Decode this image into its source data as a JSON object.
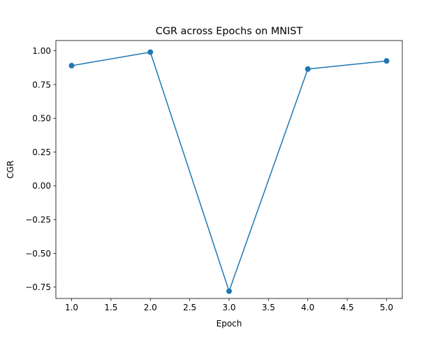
{
  "chart_data": {
    "type": "line",
    "title": "CGR across Epochs on MNIST",
    "xlabel": "Epoch",
    "ylabel": "CGR",
    "xlim": [
      0.8,
      5.2
    ],
    "ylim": [
      -0.834,
      1.076
    ],
    "xticks": [
      1.0,
      1.5,
      2.0,
      2.5,
      3.0,
      3.5,
      4.0,
      4.5,
      5.0
    ],
    "xtick_labels": [
      "1.0",
      "1.5",
      "2.0",
      "2.5",
      "3.0",
      "3.5",
      "4.0",
      "4.5",
      "5.0"
    ],
    "yticks": [
      1.0,
      0.75,
      0.5,
      0.25,
      0.0,
      -0.25,
      -0.5,
      -0.75
    ],
    "ytick_labels": [
      "1.00",
      "0.75",
      "0.50",
      "0.25",
      "0.00",
      "−0.25",
      "−0.50",
      "−0.75"
    ],
    "grid": false,
    "series": [
      {
        "color": "#1f77b4",
        "marker": "circle",
        "x": [
          1,
          2,
          3,
          4,
          5
        ],
        "y": [
          0.89,
          0.99,
          -0.78,
          0.865,
          0.925
        ]
      }
    ]
  }
}
